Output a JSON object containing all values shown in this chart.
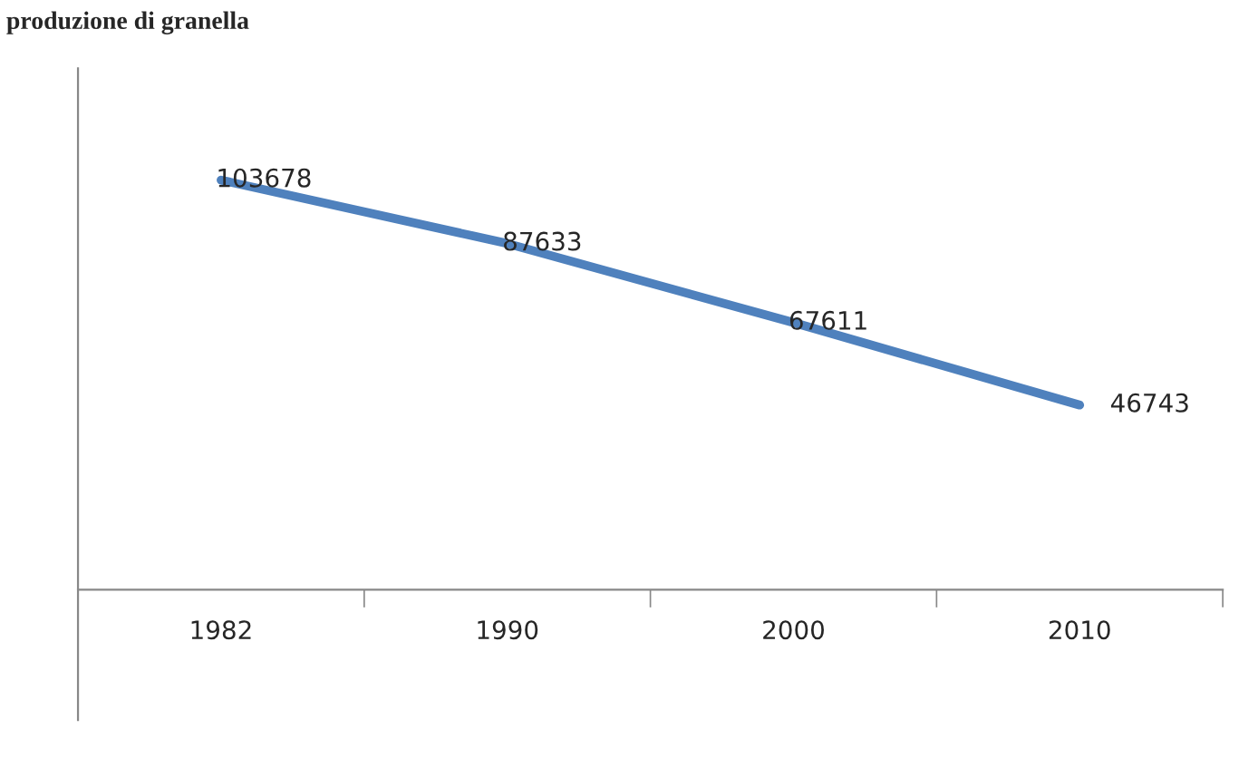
{
  "chart_data": {
    "type": "line",
    "title": "produzione di granella",
    "categories": [
      "1982",
      "1990",
      "2000",
      "2010"
    ],
    "series": [
      {
        "color": "#4f81bd",
        "values": [
          103678,
          87633,
          67611,
          46743
        ]
      }
    ],
    "ylim": [
      -33000,
      132000
    ],
    "tick_labels": "x",
    "data_labels": true,
    "grid": false,
    "legend": false,
    "marker": "none",
    "line_style": "solid"
  }
}
